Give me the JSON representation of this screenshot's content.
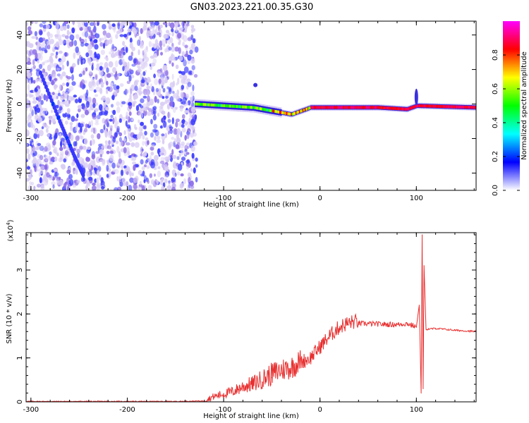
{
  "title": "GN03.2023.221.00.35.G30",
  "chart_data": [
    {
      "type": "heatmap",
      "xlabel": "Height of straight line (km)",
      "ylabel": "Frequency (Hz)",
      "xlim": [
        -305,
        162
      ],
      "ylim": [
        -50,
        48
      ],
      "xticks": [
        -300,
        -200,
        -100,
        0,
        100
      ],
      "yticks": [
        40,
        20,
        0,
        -20,
        -40
      ],
      "colorbar": {
        "label": "Normalized spectral amplitude",
        "range": [
          0,
          1
        ],
        "ticks": [
          "0.0",
          "0.2",
          "0.4",
          "0.6",
          "0.8"
        ],
        "colors": [
          "#ffffff",
          "#0000ff",
          "#00ffff",
          "#00ff00",
          "#ffff00",
          "#ff0000",
          "#ff00ff"
        ]
      },
      "features": {
        "noise_region_x": [
          -305,
          -128
        ],
        "diagonal_trace": [
          [
            -290,
            18
          ],
          [
            -270,
            -10
          ],
          [
            -255,
            -30
          ],
          [
            -245,
            -42
          ]
        ],
        "signal_trace": [
          [
            -130,
            0
          ],
          [
            -70,
            -2
          ],
          [
            -50,
            -4
          ],
          [
            -30,
            -6
          ],
          [
            -10,
            -2
          ],
          [
            20,
            -2
          ],
          [
            60,
            -2
          ],
          [
            90,
            -3
          ],
          [
            100,
            -1
          ],
          [
            162,
            -2
          ]
        ]
      }
    },
    {
      "type": "line",
      "xlabel": "Height of straight line (km)",
      "ylabel": "SNR (10 * v/v)",
      "scale_label": "(x10",
      "scale_exp": "4",
      "scale_close": ")",
      "xlim": [
        -305,
        162
      ],
      "ylim": [
        0,
        3.85
      ],
      "xticks": [
        -300,
        -200,
        -100,
        0,
        100
      ],
      "yticks": [
        0,
        1,
        2,
        3
      ],
      "color": "#e83030",
      "series": [
        {
          "x": [
            -305,
            -250,
            -200,
            -150,
            -120,
            -110,
            -100,
            -90,
            -80,
            -70,
            -60,
            -50,
            -40,
            -30,
            -20,
            -10,
            0,
            10,
            20,
            30,
            40,
            50,
            60,
            70,
            80,
            90,
            95,
            100,
            103,
            105,
            106,
            107,
            108,
            110,
            120,
            140,
            162
          ],
          "values": [
            0.01,
            0.01,
            0.01,
            0.01,
            0.02,
            0.1,
            0.15,
            0.2,
            0.3,
            0.35,
            0.45,
            0.55,
            0.65,
            0.7,
            0.85,
            0.95,
            1.2,
            1.45,
            1.65,
            1.75,
            1.78,
            1.78,
            1.77,
            1.76,
            1.76,
            1.78,
            1.75,
            1.7,
            2.2,
            0.2,
            3.8,
            0.3,
            3.1,
            1.65,
            1.67,
            1.63,
            1.6
          ]
        }
      ]
    }
  ]
}
